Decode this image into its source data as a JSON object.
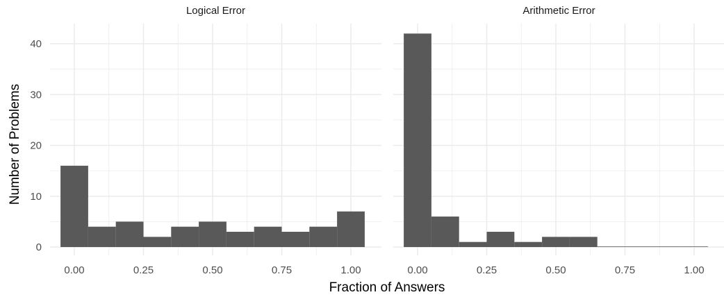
{
  "chart_data": {
    "type": "bar",
    "xlabel": "Fraction of Answers",
    "ylabel": "Number of Problems",
    "xlim": [
      -0.05,
      1.05
    ],
    "ylim": [
      0,
      43
    ],
    "x_ticks": [
      "0.00",
      "0.25",
      "0.50",
      "0.75",
      "1.00"
    ],
    "y_ticks": [
      "0",
      "10",
      "20",
      "30",
      "40"
    ],
    "bar_color": "#595959",
    "grid_color": "#ebebeb",
    "grid": true,
    "bin_width": 0.1,
    "bin_centers": [
      0.0,
      0.1,
      0.2,
      0.3,
      0.4,
      0.5,
      0.6,
      0.7,
      0.8,
      0.9,
      1.0
    ],
    "panels": [
      {
        "title": "Logical Error",
        "values": [
          16,
          4,
          5,
          2,
          4,
          5,
          3,
          4,
          3,
          4,
          7
        ]
      },
      {
        "title": "Arithmetic Error",
        "values": [
          42,
          6,
          1,
          3,
          1,
          2,
          2,
          0,
          0,
          0,
          0
        ]
      }
    ]
  }
}
